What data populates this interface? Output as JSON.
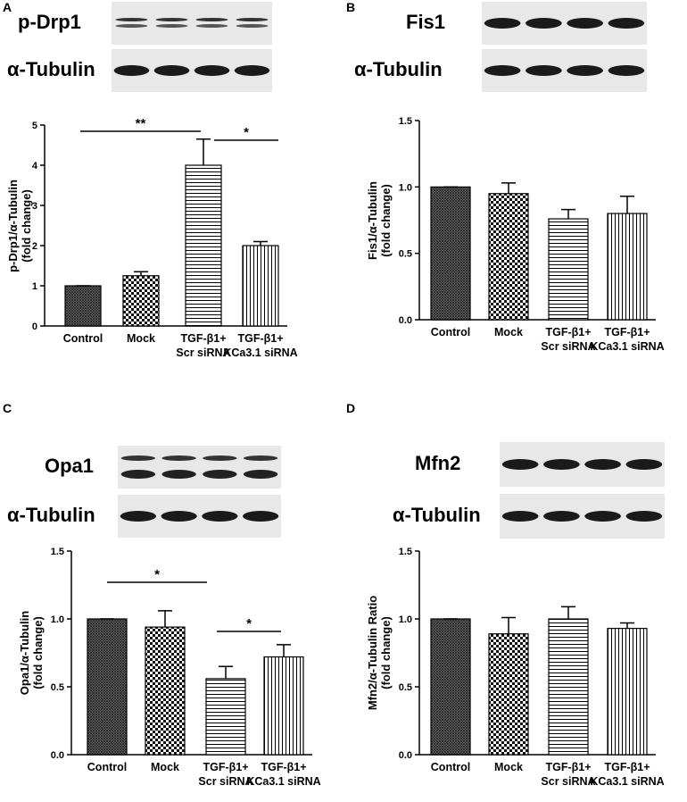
{
  "chart_data": [
    {
      "type": "bar",
      "panel": "A",
      "blots": [
        "p-Drp1",
        "α-Tubulin"
      ],
      "y_label": "p-Drp1/α-Tubulin\n(fold change)",
      "categories": [
        "Control",
        "Mock",
        "TGF-β1+\nScr siRNA",
        "TGF-β1+\nKCa3.1 siRNA"
      ],
      "values": [
        1.0,
        1.25,
        4.0,
        2.0
      ],
      "errors": [
        0,
        0.1,
        0.65,
        0.1
      ],
      "ylim": [
        0,
        5
      ],
      "yticks": [
        0,
        1,
        2,
        3,
        4,
        5
      ],
      "annotations": [
        {
          "text": "**"
        },
        {
          "text": "*"
        }
      ]
    },
    {
      "type": "bar",
      "panel": "B",
      "blots": [
        "Fis1",
        "α-Tubulin"
      ],
      "y_label": "Fis1/α-Tubulin\n(fold change)",
      "categories": [
        "Control",
        "Mock",
        "TGF-β1+\nScr siRNA",
        "TGF-β1+\nKCa3.1 siRNA"
      ],
      "values": [
        1.0,
        0.95,
        0.76,
        0.8
      ],
      "errors": [
        0,
        0.08,
        0.07,
        0.13
      ],
      "ylim": [
        0,
        1.5
      ],
      "yticks": [
        {
          "value": 0,
          "label": "0.0"
        },
        {
          "value": 0.5,
          "label": "0.5"
        },
        {
          "value": 1,
          "label": "1.0"
        },
        {
          "value": 1.5,
          "label": "1.5"
        }
      ],
      "annotations": []
    },
    {
      "type": "bar",
      "panel": "C",
      "blots": [
        "Opa1",
        "α-Tubulin"
      ],
      "y_label": "Opa1/α-Tubulin\n(fold change)",
      "categories": [
        "Control",
        "Mock",
        "TGF-β1+\nScr siRNA",
        "TGF-β1+\nKCa3.1 siRNA"
      ],
      "values": [
        1.0,
        0.94,
        0.56,
        0.72
      ],
      "errors": [
        0,
        0.12,
        0.09,
        0.09
      ],
      "ylim": [
        0,
        1.5
      ],
      "yticks": [
        {
          "value": 0,
          "label": "0.0"
        },
        {
          "value": 0.5,
          "label": "0.5"
        },
        {
          "value": 1,
          "label": "1.0"
        },
        {
          "value": 1.5,
          "label": "1.5"
        }
      ],
      "annotations": [
        {
          "text": "*"
        },
        {
          "text": "*"
        }
      ]
    },
    {
      "type": "bar",
      "panel": "D",
      "blots": [
        "Mfn2",
        "α-Tubulin"
      ],
      "y_label": "Mfn2/α-Tubulin Ratio\n(fold change)",
      "categories": [
        "Control",
        "Mock",
        "TGF-β1+\nScr siRNA",
        "TGF-β1+\nKCa3.1 siRNA"
      ],
      "values": [
        1.0,
        0.89,
        1.0,
        0.93
      ],
      "errors": [
        0,
        0.12,
        0.09,
        0.04
      ],
      "ylim": [
        0,
        1.5
      ],
      "yticks": [
        {
          "value": 0,
          "label": "0.0"
        },
        {
          "value": 0.5,
          "label": "0.5"
        },
        {
          "value": 1,
          "label": "1.0"
        },
        {
          "value": 1.5,
          "label": "1.5"
        }
      ],
      "annotations": []
    }
  ]
}
